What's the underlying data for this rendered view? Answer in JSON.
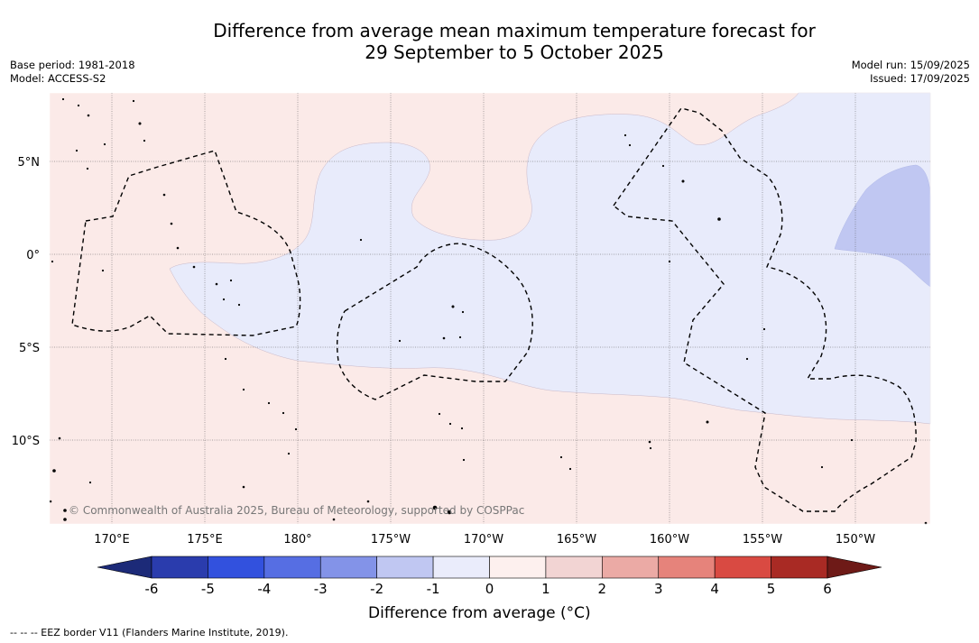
{
  "title_line1": "Difference from average mean maximum temperature forecast for",
  "title_line2": "29 September to 5 October 2025",
  "base_period": "Base period: 1981-2018",
  "model": "Model: ACCESS-S2",
  "model_run": "Model run: 15/09/2025",
  "issued": "Issued: 17/09/2025",
  "copyright": "© Commonwealth of Australia 2025, Bureau of Meteorology, supported by COSPPac",
  "lon_labels": [
    "170°E",
    "175°E",
    "180°",
    "175°W",
    "170°W",
    "165°W",
    "160°W",
    "155°W",
    "150°W"
  ],
  "lat_labels": [
    "5°N",
    "0°",
    "5°S",
    "10°S"
  ],
  "colorbar": {
    "title": "Difference from average (°C)",
    "ticks": [
      "-6",
      "-5",
      "-4",
      "-3",
      "-2",
      "-1",
      "0",
      "1",
      "2",
      "3",
      "4",
      "5",
      "6"
    ],
    "colors": [
      "#2a3cad",
      "#3251de",
      "#566ee3",
      "#8393e8",
      "#c0c7f2",
      "#eaecfb",
      "#fdf0ee",
      "#f2d4d3",
      "#ebaaa5",
      "#e6837b",
      "#d94a42",
      "#a92a24"
    ],
    "under_color": "#1c2a78",
    "over_color": "#6e1a17"
  },
  "map_colors": {
    "warm_light": "#fbeae8",
    "cool_light": "#e8ebfb",
    "cool_medium": "#c0c7f2"
  },
  "eez_legend": "--  --  -- EEZ border V11 (Flanders Marine Institute, 2019)."
}
